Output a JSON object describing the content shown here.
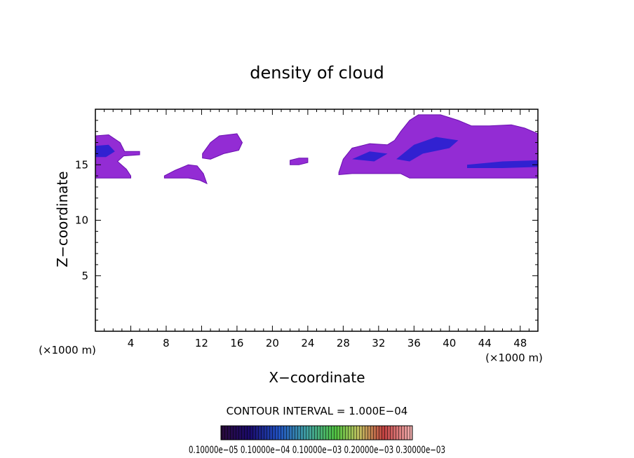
{
  "chart_data": {
    "type": "contour",
    "title": "density of cloud",
    "xlabel": "X−coordinate",
    "ylabel": "Z−coordinate",
    "x_unit_left": "(×1000 m)",
    "x_unit_right": "(×1000 m)",
    "xlim": [
      0,
      50
    ],
    "ylim": [
      0,
      20
    ],
    "x_ticks": [
      4,
      8,
      12,
      16,
      20,
      24,
      28,
      32,
      36,
      40,
      44,
      48
    ],
    "x_tick_labels": [
      "4",
      "8",
      "12",
      "16",
      "20",
      "24",
      "28",
      "32",
      "36",
      "40",
      "44",
      "48"
    ],
    "y_ticks": [
      5,
      10,
      15
    ],
    "y_tick_labels": [
      "5",
      "10",
      "15"
    ],
    "contour_interval_text": "CONTOUR INTERVAL = 1.000E−04",
    "colorbar_labels_text": "0.10000e−05  0.10000e−04  0.10000e−03  0.20000e−03  0.30000e−03",
    "colorbar_levels_approx": [
      1e-06,
      1e-05,
      0.0001,
      0.0002,
      0.0003
    ],
    "colorbar_colors": [
      "#6a1a8a",
      "#1010b0",
      "#3a6ad0",
      "#40c040",
      "#e0e040",
      "#e04040",
      "#ffd0d0"
    ],
    "cloud_color_main": "#8a1ad0",
    "cloud_color_dense": "#2020d0",
    "cloud_regions": [
      {
        "name": "cloud-a",
        "x_range": [
          0,
          5
        ],
        "z_range": [
          13.8,
          17.7
        ]
      },
      {
        "name": "cloud-b",
        "x_range": [
          7.8,
          12.6
        ],
        "z_range": [
          13.3,
          15.0
        ]
      },
      {
        "name": "cloud-c",
        "x_range": [
          12,
          16.6
        ],
        "z_range": [
          15.7,
          17.8
        ]
      },
      {
        "name": "cloud-d",
        "x_range": [
          22,
          24
        ],
        "z_range": [
          15.0,
          15.6
        ]
      },
      {
        "name": "cloud-e",
        "x_range": [
          27.5,
          50
        ],
        "z_range": [
          13.8,
          19.5
        ]
      }
    ]
  }
}
